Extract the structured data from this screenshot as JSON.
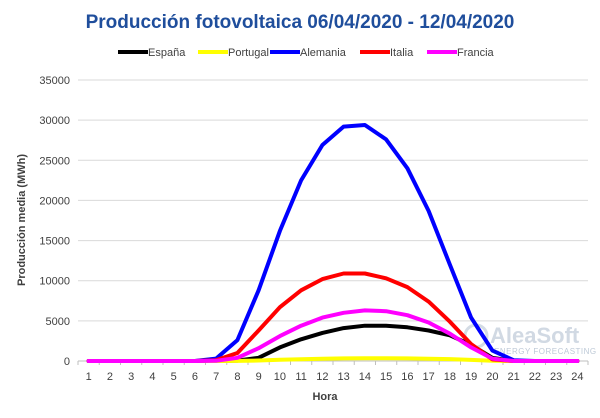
{
  "chart_data": {
    "type": "line",
    "title": "Producción fotovoltaica 06/04/2020 - 12/04/2020",
    "xlabel": "Hora",
    "ylabel": "Producción media (MWh)",
    "ylim": [
      0,
      35000
    ],
    "yticks": [
      "0",
      "5000",
      "10000",
      "15000",
      "20000",
      "25000",
      "30000",
      "35000"
    ],
    "x": [
      1,
      2,
      3,
      4,
      5,
      6,
      7,
      8,
      9,
      10,
      11,
      12,
      13,
      14,
      15,
      16,
      17,
      18,
      19,
      20,
      21,
      22,
      23,
      24
    ],
    "xticks": [
      "1",
      "2",
      "3",
      "4",
      "5",
      "6",
      "7",
      "8",
      "9",
      "10",
      "11",
      "12",
      "13",
      "14",
      "15",
      "16",
      "17",
      "18",
      "19",
      "20",
      "21",
      "22",
      "23",
      "24"
    ],
    "grid": "horizontal",
    "legend": "top",
    "series": [
      {
        "name": "España",
        "color": "#000000",
        "values": [
          0,
          0,
          0,
          0,
          0,
          0,
          0,
          50,
          400,
          1700,
          2700,
          3500,
          4100,
          4400,
          4400,
          4200,
          3800,
          3200,
          2000,
          400,
          0,
          0,
          0,
          0
        ]
      },
      {
        "name": "Portugal",
        "color": "#ffff00",
        "values": [
          0,
          0,
          0,
          0,
          0,
          0,
          0,
          10,
          60,
          150,
          230,
          280,
          320,
          340,
          340,
          320,
          290,
          240,
          140,
          30,
          0,
          0,
          0,
          0
        ]
      },
      {
        "name": "Alemania",
        "color": "#0000ff",
        "values": [
          0,
          0,
          0,
          0,
          0,
          0,
          300,
          2600,
          8800,
          16200,
          22500,
          26900,
          29200,
          29400,
          27600,
          24000,
          18700,
          12000,
          5400,
          1300,
          100,
          0,
          0,
          0
        ]
      },
      {
        "name": "Italia",
        "color": "#ff0000",
        "values": [
          0,
          0,
          0,
          0,
          0,
          0,
          100,
          1000,
          3800,
          6700,
          8800,
          10200,
          10900,
          10900,
          10300,
          9200,
          7400,
          4900,
          2100,
          200,
          0,
          0,
          0,
          0
        ]
      },
      {
        "name": "Francia",
        "color": "#ff00ff",
        "values": [
          0,
          0,
          0,
          0,
          0,
          0,
          30,
          400,
          1600,
          3100,
          4400,
          5400,
          6000,
          6300,
          6200,
          5700,
          4800,
          3400,
          1700,
          300,
          0,
          0,
          0,
          0
        ]
      }
    ]
  },
  "watermark": {
    "brand": "AleaSoft",
    "tagline": "ENERGY FORECASTING"
  }
}
